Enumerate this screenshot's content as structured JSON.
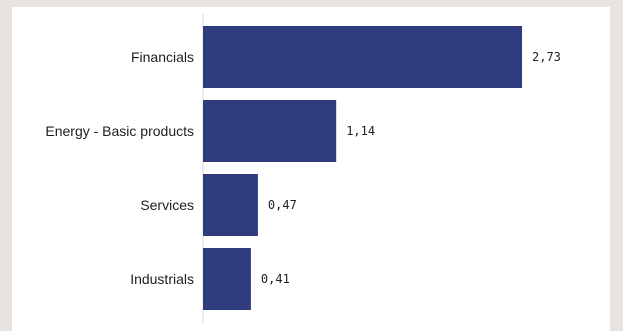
{
  "chart_data": {
    "type": "bar",
    "orientation": "horizontal",
    "categories": [
      "Financials",
      "Energy - Basic products",
      "Services",
      "Industrials"
    ],
    "values": [
      2.73,
      1.14,
      0.47,
      0.41
    ],
    "value_labels": [
      "2,73",
      "1,14",
      "0,47",
      "0,41"
    ],
    "title": "",
    "xlabel": "",
    "ylabel": "",
    "xlim": [
      0,
      2.73
    ],
    "grid": false,
    "bar_color": "#2f3d7e",
    "axis_color": "#d9d9d9"
  }
}
